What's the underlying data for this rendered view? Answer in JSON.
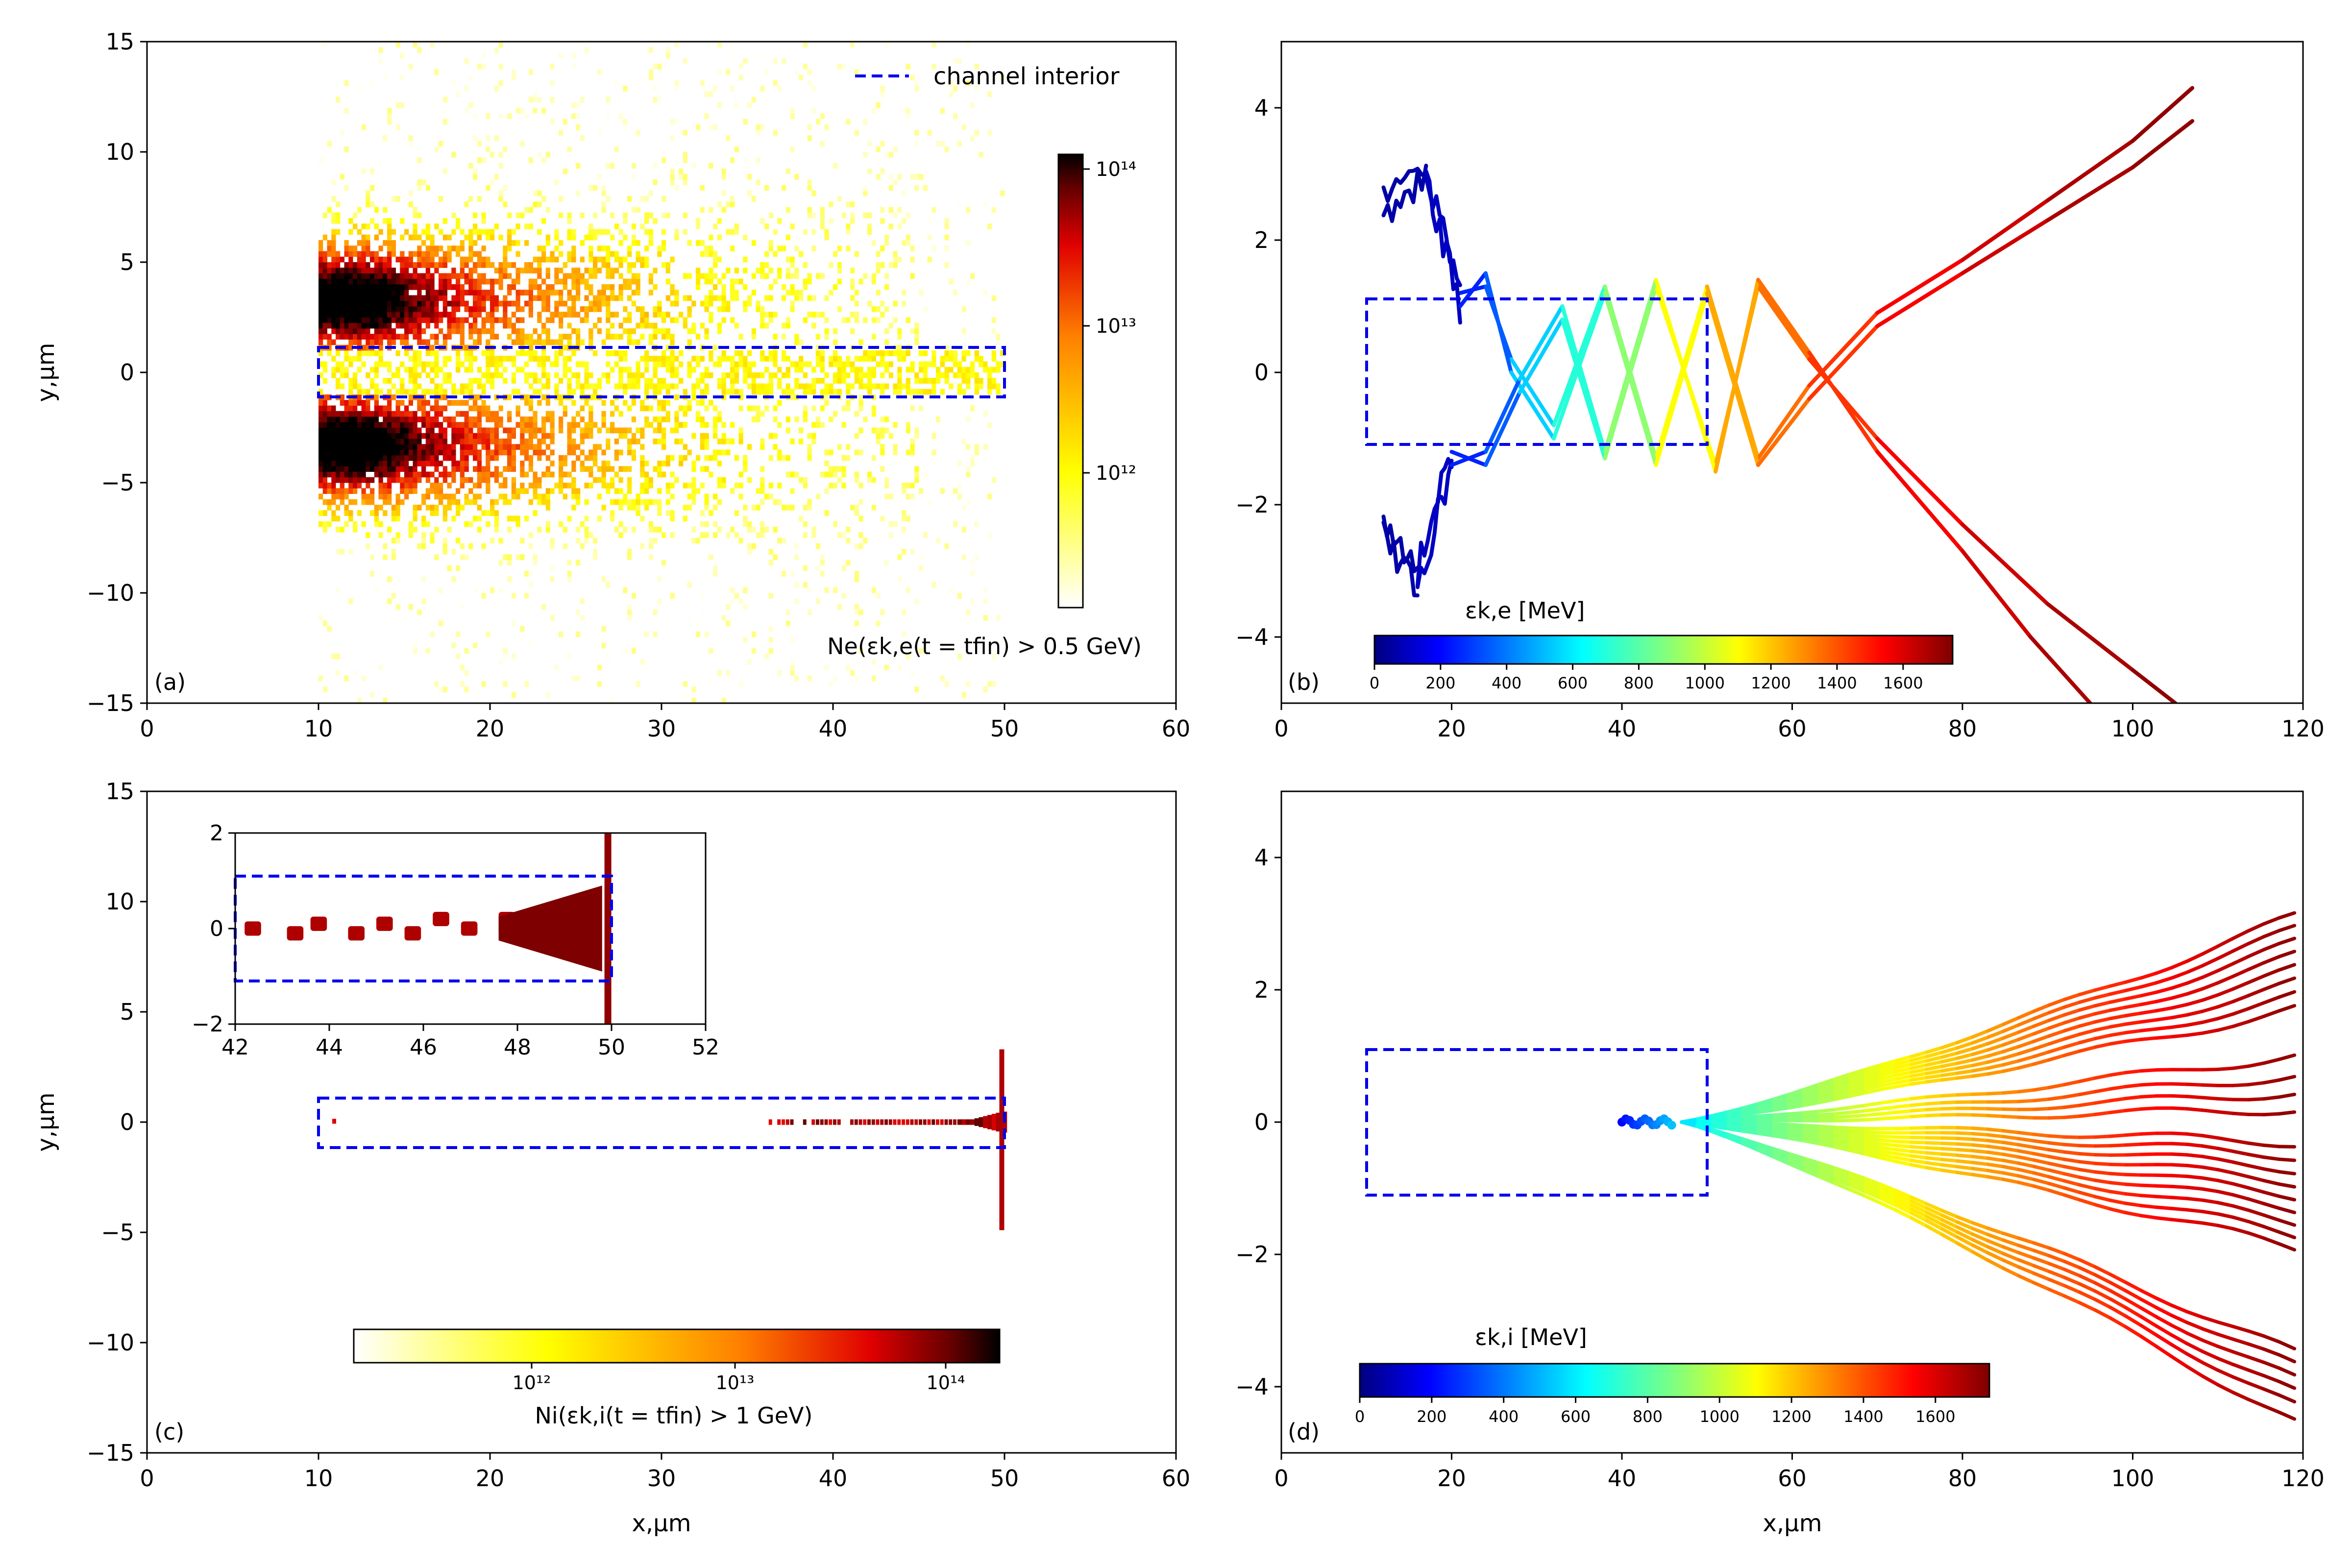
{
  "chart_data": [
    {
      "id": "a",
      "type": "heatmap",
      "panel_label": "(a)",
      "xlabel": "",
      "ylabel": "y,μm",
      "xlim": [
        0,
        60
      ],
      "ylim": [
        -15,
        15
      ],
      "xticks": [
        "0",
        "10",
        "20",
        "30",
        "40",
        "50",
        "60"
      ],
      "yticks": [
        "−15",
        "−10",
        "−5",
        "0",
        "5",
        "10",
        "15"
      ],
      "legend_label": "channel interior",
      "legend_position": "top-right",
      "annotation": "Ne(εk,e(t = tfin) > 0.5 GeV)",
      "colorbar_ticks": [
        "10¹²",
        "10¹³",
        "10¹⁴"
      ],
      "colormap": "hot_r",
      "channel_box": {
        "x": [
          10,
          50
        ],
        "y": [
          -1.1,
          1.1
        ]
      },
      "distribution": [
        {
          "name": "upper lobe",
          "x_range": [
            10,
            45
          ],
          "y_center": 3.5,
          "peak_x": 13,
          "peak_density": 150000000000000.0
        },
        {
          "name": "lower lobe",
          "x_range": [
            10,
            45
          ],
          "y_center": -3.5,
          "peak_x": 13,
          "peak_density": 150000000000000.0
        },
        {
          "name": "channel core",
          "x_range": [
            10,
            50
          ],
          "y_center": 0,
          "peak_density": 5000000000000.0
        }
      ]
    },
    {
      "id": "b",
      "type": "line",
      "panel_label": "(b)",
      "xlabel": "",
      "ylabel": "",
      "xlim": [
        0,
        120
      ],
      "ylim": [
        -5,
        5
      ],
      "xticks": [
        "0",
        "20",
        "40",
        "60",
        "80",
        "100",
        "120"
      ],
      "yticks": [
        "−4",
        "−2",
        "0",
        "2",
        "4"
      ],
      "colorbar_label": "εk,e [MeV]",
      "colorbar_ticks": [
        "0",
        "200",
        "400",
        "600",
        "800",
        "1000",
        "1200",
        "1400",
        "1600"
      ],
      "energy_range": [
        0,
        1750
      ],
      "channel_box": {
        "x": [
          10,
          50
        ],
        "y": [
          -1.1,
          1.1
        ]
      },
      "series": [
        {
          "name": "electron track 1",
          "x": [
            12,
            17,
            21,
            24,
            27,
            32,
            38,
            44,
            50,
            56,
            62,
            70,
            80,
            90,
            100,
            107
          ],
          "y": [
            2.8,
            3.1,
            1.2,
            1.3,
            0.2,
            -0.8,
            1.3,
            -1.3,
            1.3,
            -1.3,
            -0.2,
            0.9,
            1.7,
            2.6,
            3.5,
            4.3
          ],
          "energy": [
            60,
            100,
            250,
            350,
            550,
            700,
            900,
            1100,
            1250,
            1350,
            1450,
            1550,
            1620,
            1680,
            1720,
            1740
          ]
        },
        {
          "name": "electron track 2",
          "x": [
            12,
            17,
            21,
            24,
            27,
            32,
            38,
            44,
            50,
            56,
            62,
            70,
            80,
            90,
            100,
            107
          ],
          "y": [
            2.4,
            2.9,
            1.0,
            1.5,
            0.0,
            -1.0,
            1.2,
            -1.4,
            1.2,
            -1.4,
            -0.4,
            0.7,
            1.5,
            2.3,
            3.1,
            3.8
          ],
          "energy": [
            60,
            100,
            250,
            350,
            550,
            700,
            900,
            1100,
            1250,
            1350,
            1450,
            1550,
            1620,
            1680,
            1720,
            1740
          ]
        },
        {
          "name": "electron track 3",
          "x": [
            12,
            16,
            20,
            24,
            28,
            33,
            38,
            44,
            51,
            56,
            62,
            70,
            80,
            90,
            100,
            105
          ],
          "y": [
            -2.2,
            -3.0,
            -1.2,
            -1.4,
            -0.3,
            0.8,
            -1.3,
            1.3,
            -1.4,
            1.3,
            0.2,
            -1.0,
            -2.3,
            -3.5,
            -4.5,
            -5.0
          ],
          "energy": [
            60,
            100,
            250,
            350,
            550,
            700,
            900,
            1100,
            1250,
            1350,
            1450,
            1550,
            1620,
            1680,
            1720,
            1740
          ]
        },
        {
          "name": "electron track 4",
          "x": [
            12,
            16,
            20,
            24,
            28,
            33,
            38,
            44,
            51,
            56,
            62,
            70,
            80,
            88,
            95
          ],
          "y": [
            -2.5,
            -3.3,
            -1.4,
            -1.2,
            -0.1,
            1.0,
            -1.2,
            1.4,
            -1.5,
            1.4,
            0.3,
            -1.2,
            -2.7,
            -4.0,
            -5.0
          ],
          "energy": [
            60,
            100,
            250,
            350,
            550,
            700,
            900,
            1100,
            1250,
            1350,
            1450,
            1550,
            1620,
            1680,
            1720
          ]
        }
      ]
    },
    {
      "id": "c",
      "type": "heatmap",
      "panel_label": "(c)",
      "xlabel": "x,μm",
      "ylabel": "y,μm",
      "xlim": [
        0,
        60
      ],
      "ylim": [
        -15,
        15
      ],
      "xticks": [
        "0",
        "10",
        "20",
        "30",
        "40",
        "50",
        "60"
      ],
      "yticks": [
        "−15",
        "−10",
        "−5",
        "0",
        "5",
        "10",
        "15"
      ],
      "annotation": "Ni(εk,i(t = tfin) > 1 GeV)",
      "colorbar_ticks": [
        "10¹²",
        "10¹³",
        "10¹⁴"
      ],
      "colormap": "hot_r",
      "channel_box": {
        "x": [
          10,
          50
        ],
        "y": [
          -1.1,
          1.1
        ]
      },
      "inset": {
        "xlim": [
          42,
          52
        ],
        "ylim": [
          -2,
          2
        ],
        "xticks": [
          "42",
          "44",
          "46",
          "48",
          "50",
          "52"
        ],
        "yticks": [
          "−2",
          "0",
          "2"
        ],
        "blob_x": [
          42.2,
          43.1,
          43.6,
          44.4,
          45.0,
          45.6,
          46.2,
          46.8,
          47.6,
          48.4,
          49.2
        ],
        "blob_y": [
          0.0,
          -0.1,
          0.1,
          -0.1,
          0.1,
          -0.1,
          0.2,
          0.0,
          0.1,
          -0.1,
          0.0
        ]
      }
    },
    {
      "id": "d",
      "type": "line",
      "panel_label": "(d)",
      "xlabel": "x,μm",
      "ylabel": "",
      "xlim": [
        0,
        120
      ],
      "ylim": [
        -5,
        5
      ],
      "xticks": [
        "0",
        "20",
        "40",
        "60",
        "80",
        "100",
        "120"
      ],
      "yticks": [
        "−4",
        "−2",
        "0",
        "2",
        "4"
      ],
      "colorbar_label": "εk,i [MeV]",
      "colorbar_ticks": [
        "0",
        "200",
        "400",
        "600",
        "800",
        "1000",
        "1200",
        "1400",
        "1600"
      ],
      "energy_range": [
        0,
        1750
      ],
      "channel_box": {
        "x": [
          10,
          50
        ],
        "y": [
          -1.1,
          1.1
        ]
      },
      "bundle": {
        "x_start": 40,
        "x_end": 119,
        "end_y": [
          3.1,
          2.9,
          2.7,
          2.5,
          2.3,
          2.1,
          1.9,
          1.7,
          1.0,
          0.7,
          0.45,
          0.2,
          -0.3,
          -0.5,
          -0.7,
          -0.9,
          -1.1,
          -1.3,
          -1.5,
          -1.7,
          -1.9,
          -3.5,
          -3.7,
          -3.9,
          -4.1,
          -4.3,
          -4.55
        ],
        "start_energy": 200,
        "end_energy": 1720
      }
    }
  ]
}
